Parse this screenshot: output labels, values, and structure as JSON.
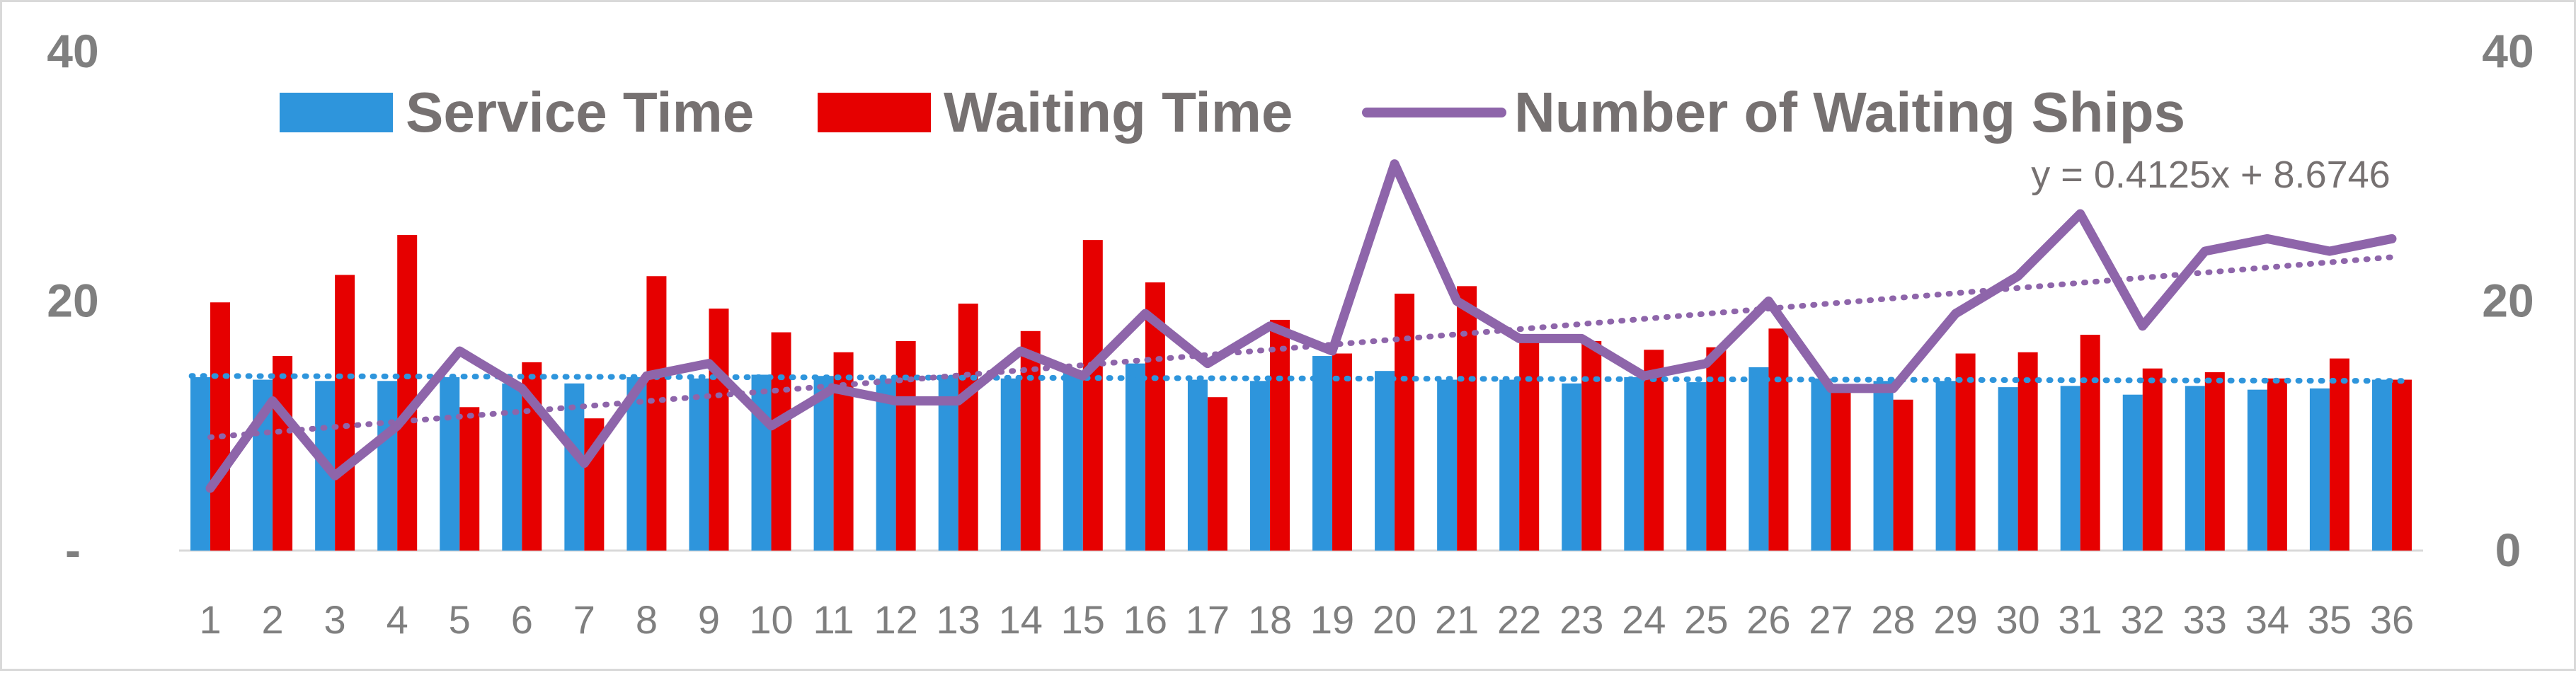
{
  "chart_data": {
    "type": "bar",
    "categories": [
      "1",
      "2",
      "3",
      "4",
      "5",
      "6",
      "7",
      "8",
      "9",
      "10",
      "11",
      "12",
      "13",
      "14",
      "15",
      "16",
      "17",
      "18",
      "19",
      "20",
      "21",
      "22",
      "23",
      "24",
      "25",
      "26",
      "27",
      "28",
      "29",
      "30",
      "31",
      "32",
      "33",
      "34",
      "35",
      "36"
    ],
    "series": [
      {
        "name": "Service Time",
        "type": "bar",
        "axis": "left",
        "color": "#2e95dc",
        "values": [
          13.9,
          13.7,
          13.6,
          13.6,
          13.9,
          13.4,
          13.4,
          13.9,
          13.8,
          14.1,
          14.0,
          13.8,
          14.0,
          13.8,
          14.4,
          15.0,
          13.7,
          13.6,
          15.6,
          14.4,
          13.7,
          13.7,
          13.4,
          13.9,
          13.5,
          14.7,
          13.8,
          13.6,
          13.6,
          13.1,
          13.2,
          12.5,
          13.2,
          12.9,
          13.0,
          13.7
        ]
      },
      {
        "name": "Waiting Time",
        "type": "bar",
        "axis": "left",
        "color": "#e60000",
        "values": [
          19.9,
          15.6,
          22.1,
          25.3,
          11.5,
          15.1,
          10.6,
          22.0,
          19.4,
          17.5,
          15.9,
          16.8,
          19.8,
          17.6,
          24.9,
          21.5,
          12.3,
          18.5,
          15.8,
          20.6,
          21.2,
          17.0,
          16.8,
          16.1,
          16.3,
          17.8,
          13.1,
          12.1,
          15.8,
          15.9,
          17.3,
          14.6,
          14.3,
          13.8,
          15.4,
          13.7
        ]
      },
      {
        "name": "Number of Waiting Ships",
        "type": "line",
        "axis": "right",
        "color": "#8e65aa",
        "values": [
          5,
          12,
          6,
          10,
          16,
          13,
          7,
          14,
          15,
          10,
          13,
          12,
          12,
          16,
          14,
          19,
          15,
          18,
          16,
          31,
          20,
          17,
          17,
          14,
          15,
          20,
          13,
          13,
          19,
          22,
          27,
          18,
          24,
          25,
          24,
          25
        ]
      }
    ],
    "trendlines": [
      {
        "series": "Service Time",
        "color": "#2e95dc",
        "style": "dotted",
        "start": 14.0,
        "end": 13.6
      },
      {
        "series": "Number of Waiting Ships",
        "color": "#8e65aa",
        "style": "dotted",
        "equation": "y = 0.4125x + 8.6746",
        "slope": 0.4125,
        "intercept": 8.6746
      }
    ],
    "left_axis": {
      "ylim": [
        0,
        40
      ],
      "ticks": [
        "-",
        "20",
        "40"
      ]
    },
    "right_axis": {
      "ylim": [
        0,
        40
      ],
      "ticks": [
        "0",
        "20",
        "40"
      ]
    },
    "legend": {
      "position": "top"
    },
    "grid": false,
    "title": "",
    "xlabel": "",
    "ylabel": ""
  }
}
